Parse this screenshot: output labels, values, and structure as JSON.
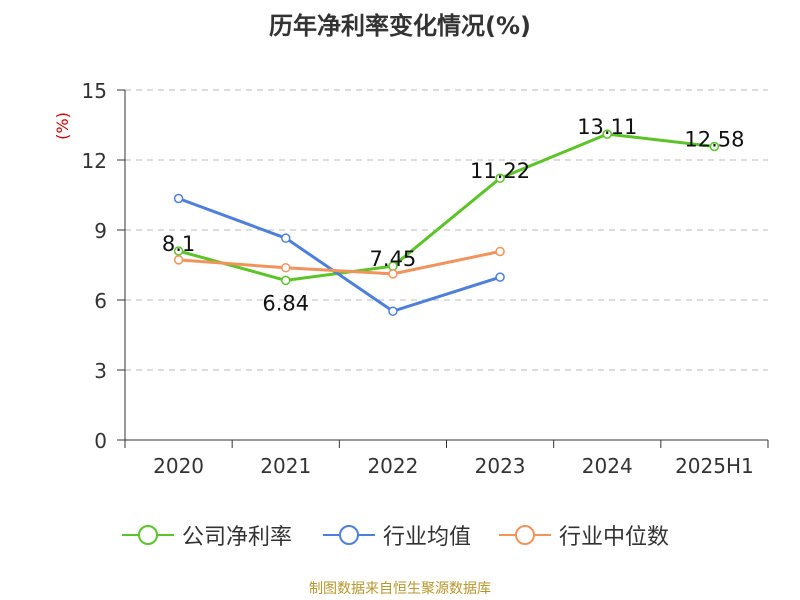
{
  "chart_data": {
    "type": "line",
    "title": "历年净利率变化情况(%)",
    "ylabel": "(%)",
    "xlabel": "",
    "categories": [
      "2020",
      "2021",
      "2022",
      "2023",
      "2024",
      "2025H1"
    ],
    "yticks": [
      "0",
      "3",
      "6",
      "9",
      "12",
      "15"
    ],
    "ylim": [
      0,
      15
    ],
    "grid": true,
    "legend_position": "bottom",
    "series": [
      {
        "name": "公司净利率",
        "color": "#5cc428",
        "values": [
          8.1,
          6.84,
          7.45,
          11.22,
          13.11,
          12.58
        ],
        "labels": [
          "8.1",
          "6.84",
          "7.45",
          "11.22",
          "13.11",
          "12.58"
        ]
      },
      {
        "name": "行业均值",
        "color": "#4e7fdb",
        "values": [
          10.35,
          8.65,
          5.52,
          6.98,
          null,
          null
        ]
      },
      {
        "name": "行业中位数",
        "color": "#f2935c",
        "values": [
          7.72,
          7.38,
          7.12,
          8.08,
          null,
          null
        ]
      }
    ]
  },
  "source": "制图数据来自恒生聚源数据库"
}
